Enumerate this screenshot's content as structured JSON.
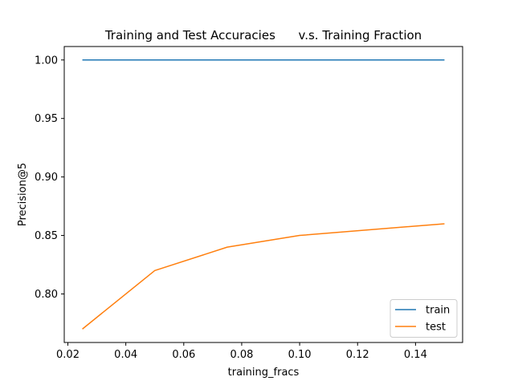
{
  "chart_data": {
    "type": "line",
    "title": "Training and Test Accuracies      v.s. Training Fraction",
    "xlabel": "training_fracs",
    "ylabel": "Precision@5",
    "x": [
      0.025,
      0.05,
      0.075,
      0.1,
      0.15
    ],
    "series": [
      {
        "name": "train",
        "color": "#1f77b4",
        "values": [
          1.0,
          1.0,
          1.0,
          1.0,
          1.0
        ]
      },
      {
        "name": "test",
        "color": "#ff7f0e",
        "values": [
          0.77,
          0.82,
          0.84,
          0.85,
          0.86
        ]
      }
    ],
    "xlim": [
      0.01875,
      0.15625
    ],
    "ylim": [
      0.7585,
      1.0115
    ],
    "xticks": [
      0.02,
      0.04,
      0.06,
      0.08,
      0.1,
      0.12,
      0.14
    ],
    "xtick_labels": [
      "0.02",
      "0.04",
      "0.06",
      "0.08",
      "0.10",
      "0.12",
      "0.14"
    ],
    "yticks": [
      0.8,
      0.85,
      0.9,
      0.95,
      1.0
    ],
    "ytick_labels": [
      "0.80",
      "0.85",
      "0.90",
      "0.95",
      "1.00"
    ],
    "grid": false,
    "legend_position": "lower-right"
  }
}
